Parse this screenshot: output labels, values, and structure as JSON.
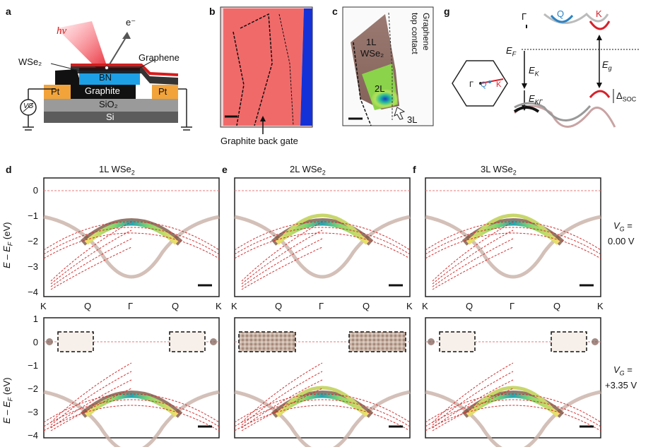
{
  "panels": {
    "a": {
      "label": "a",
      "hv": "hν",
      "electron": "e⁻",
      "wse2": "WSe₂",
      "graphene": "Graphene",
      "bn": "BN",
      "graphite": "Graphite",
      "pt_left": "Pt",
      "pt_right": "Pt",
      "sio2": "SiO₂",
      "si": "Si",
      "vg": "VG"
    },
    "b": {
      "label": "b",
      "caption": "Graphite back gate"
    },
    "c": {
      "label": "c",
      "l1": "1L",
      "wse2": "WSe₂",
      "l2": "2L",
      "l3": "3L",
      "contact1": "Graphene",
      "contact2": "top contact"
    },
    "g": {
      "label": "g",
      "gamma": "Γ",
      "q": "Q",
      "k": "K",
      "ef": "E",
      "ef_sub": "F",
      "ek": "E",
      "ek_sub": "K",
      "eg": "E",
      "eg_sub": "g",
      "ekg": "E",
      "ekg_sub": "KΓ",
      "dsoc": "Δ",
      "dsoc_sub": "SOC",
      "hex_gamma": "Γ",
      "hex_q": "Q",
      "hex_k": "K"
    },
    "d": {
      "label": "d",
      "title": "1L WSe",
      "title_sub": "2"
    },
    "e": {
      "label": "e",
      "title": "2L WSe",
      "title_sub": "2"
    },
    "f": {
      "label": "f",
      "title": "3L WSe",
      "title_sub": "2"
    }
  },
  "axes": {
    "ylabel_top": "E – E",
    "ylabel_top_sub": "F",
    "ylabel_top_unit": " (eV)",
    "ylabel_bot": "E – E",
    "ylabel_bot_sub": "F",
    "ylabel_bot_unit": " (eV)",
    "yticks_top": [
      "0",
      "−1",
      "−2",
      "−3",
      "−4"
    ],
    "yticks_bot": [
      "1",
      "0",
      "−1",
      "−2",
      "−3",
      "−4"
    ],
    "kpath": [
      "K",
      "Q",
      "Γ",
      "Q",
      "K"
    ]
  },
  "vg": {
    "top_label": "V",
    "top_sub": "G",
    "top_eq": " =",
    "top_value": "0.00 V",
    "bot_label": "V",
    "bot_sub": "G",
    "bot_eq": " =",
    "bot_value": "+3.35 V"
  },
  "colors": {
    "dft": "#d32f2f",
    "band": "#6b3d2a",
    "bn": "#1ea0e6",
    "graphene": "#d81b1b",
    "pt": "#f2a33a",
    "q": "#2b83c6",
    "k": "#d6222b"
  }
}
